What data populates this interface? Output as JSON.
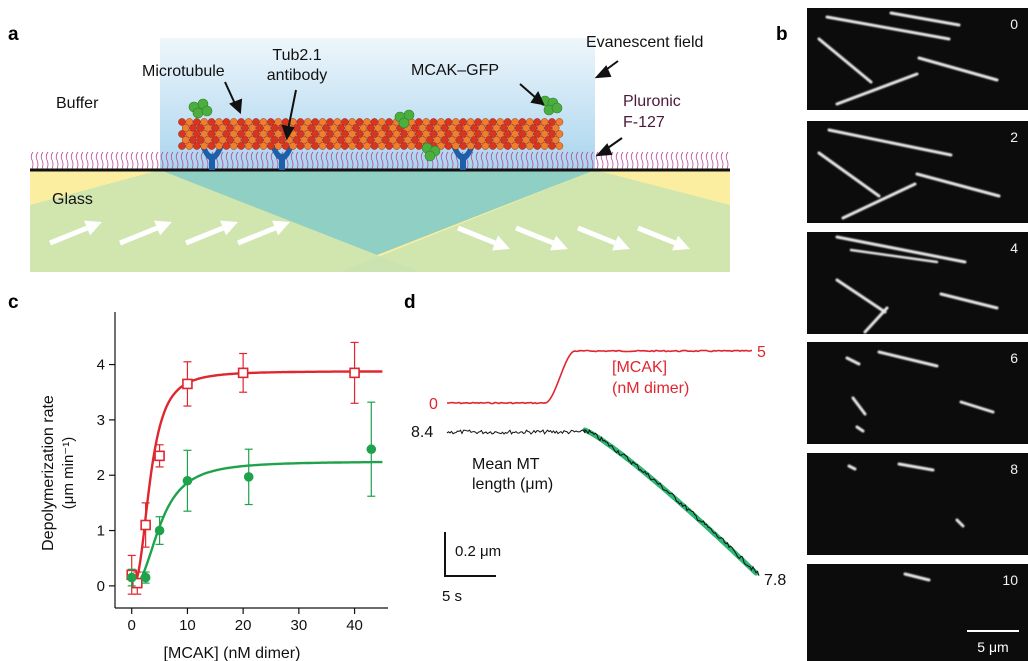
{
  "panel_labels": {
    "a": "a",
    "b": "b",
    "c": "c",
    "d": "d"
  },
  "panel_a": {
    "buffer": "Buffer",
    "glass": "Glass",
    "microtubule": "Microtubule",
    "antibody_line1": "Tub2.1",
    "antibody_line2": "antibody",
    "mcak_gfp": "MCAK–GFP",
    "evanescent": "Evanescent field",
    "pluronic_line1": "Pluronic",
    "pluronic_line2": "F-127",
    "colors": {
      "red": "#d9341e",
      "orange": "#ef7f2a",
      "antibody": "#1d5fa8",
      "gfp": "#4caf3d",
      "pluronic": "#b8489a"
    }
  },
  "panel_b": {
    "times": [
      "0",
      "2",
      "4",
      "6",
      "8",
      "10"
    ],
    "scalebar": "5 μm"
  },
  "panel_c": {
    "chart_data": {
      "type": "scatter",
      "xlabel": "[MCAK] (nM dimer)",
      "ylabel_line1": "Depolymerization rate",
      "ylabel_line2": "(μm min⁻¹)",
      "xlim": [
        -3,
        46
      ],
      "ylim": [
        -0.4,
        4.95
      ],
      "xticks": [
        0,
        10,
        20,
        30,
        40
      ],
      "yticks": [
        0,
        1,
        2,
        3,
        4
      ],
      "series": [
        {
          "marker": "open-square",
          "color": "#e0262f",
          "x": [
            0,
            1,
            2.5,
            5,
            10,
            20,
            40
          ],
          "y": [
            0.2,
            0.05,
            1.1,
            2.35,
            3.65,
            3.85,
            3.85
          ],
          "err": [
            0.35,
            0.2,
            0.4,
            0.2,
            0.4,
            0.35,
            0.55
          ],
          "fit": {
            "vmax": 3.88,
            "k": 3.35,
            "n": 2.6
          }
        },
        {
          "marker": "filled-circle",
          "color": "#1ea24b",
          "x": [
            0,
            2.5,
            5,
            10,
            21,
            43
          ],
          "y": [
            0.15,
            0.15,
            1.0,
            1.9,
            1.97,
            2.47
          ],
          "err": [
            0.15,
            0.1,
            0.25,
            0.55,
            0.5,
            0.85
          ],
          "fit": {
            "vmax": 2.25,
            "k": 5.2,
            "n": 2.4
          }
        }
      ]
    }
  },
  "panel_d": {
    "conc_label_line1": "[MCAK]",
    "conc_label_line2": "(nM dimer)",
    "conc_low": "0",
    "conc_high": "5",
    "length_start": "8.4",
    "length_end": "7.8",
    "length_label_line1": "Mean MT",
    "length_label_line2": "length (μm)",
    "scale_y": "0.2 μm",
    "scale_x": "5 s",
    "colors": {
      "conc": "#e0262f",
      "length": "#111111",
      "fit": "#2bb673"
    }
  }
}
